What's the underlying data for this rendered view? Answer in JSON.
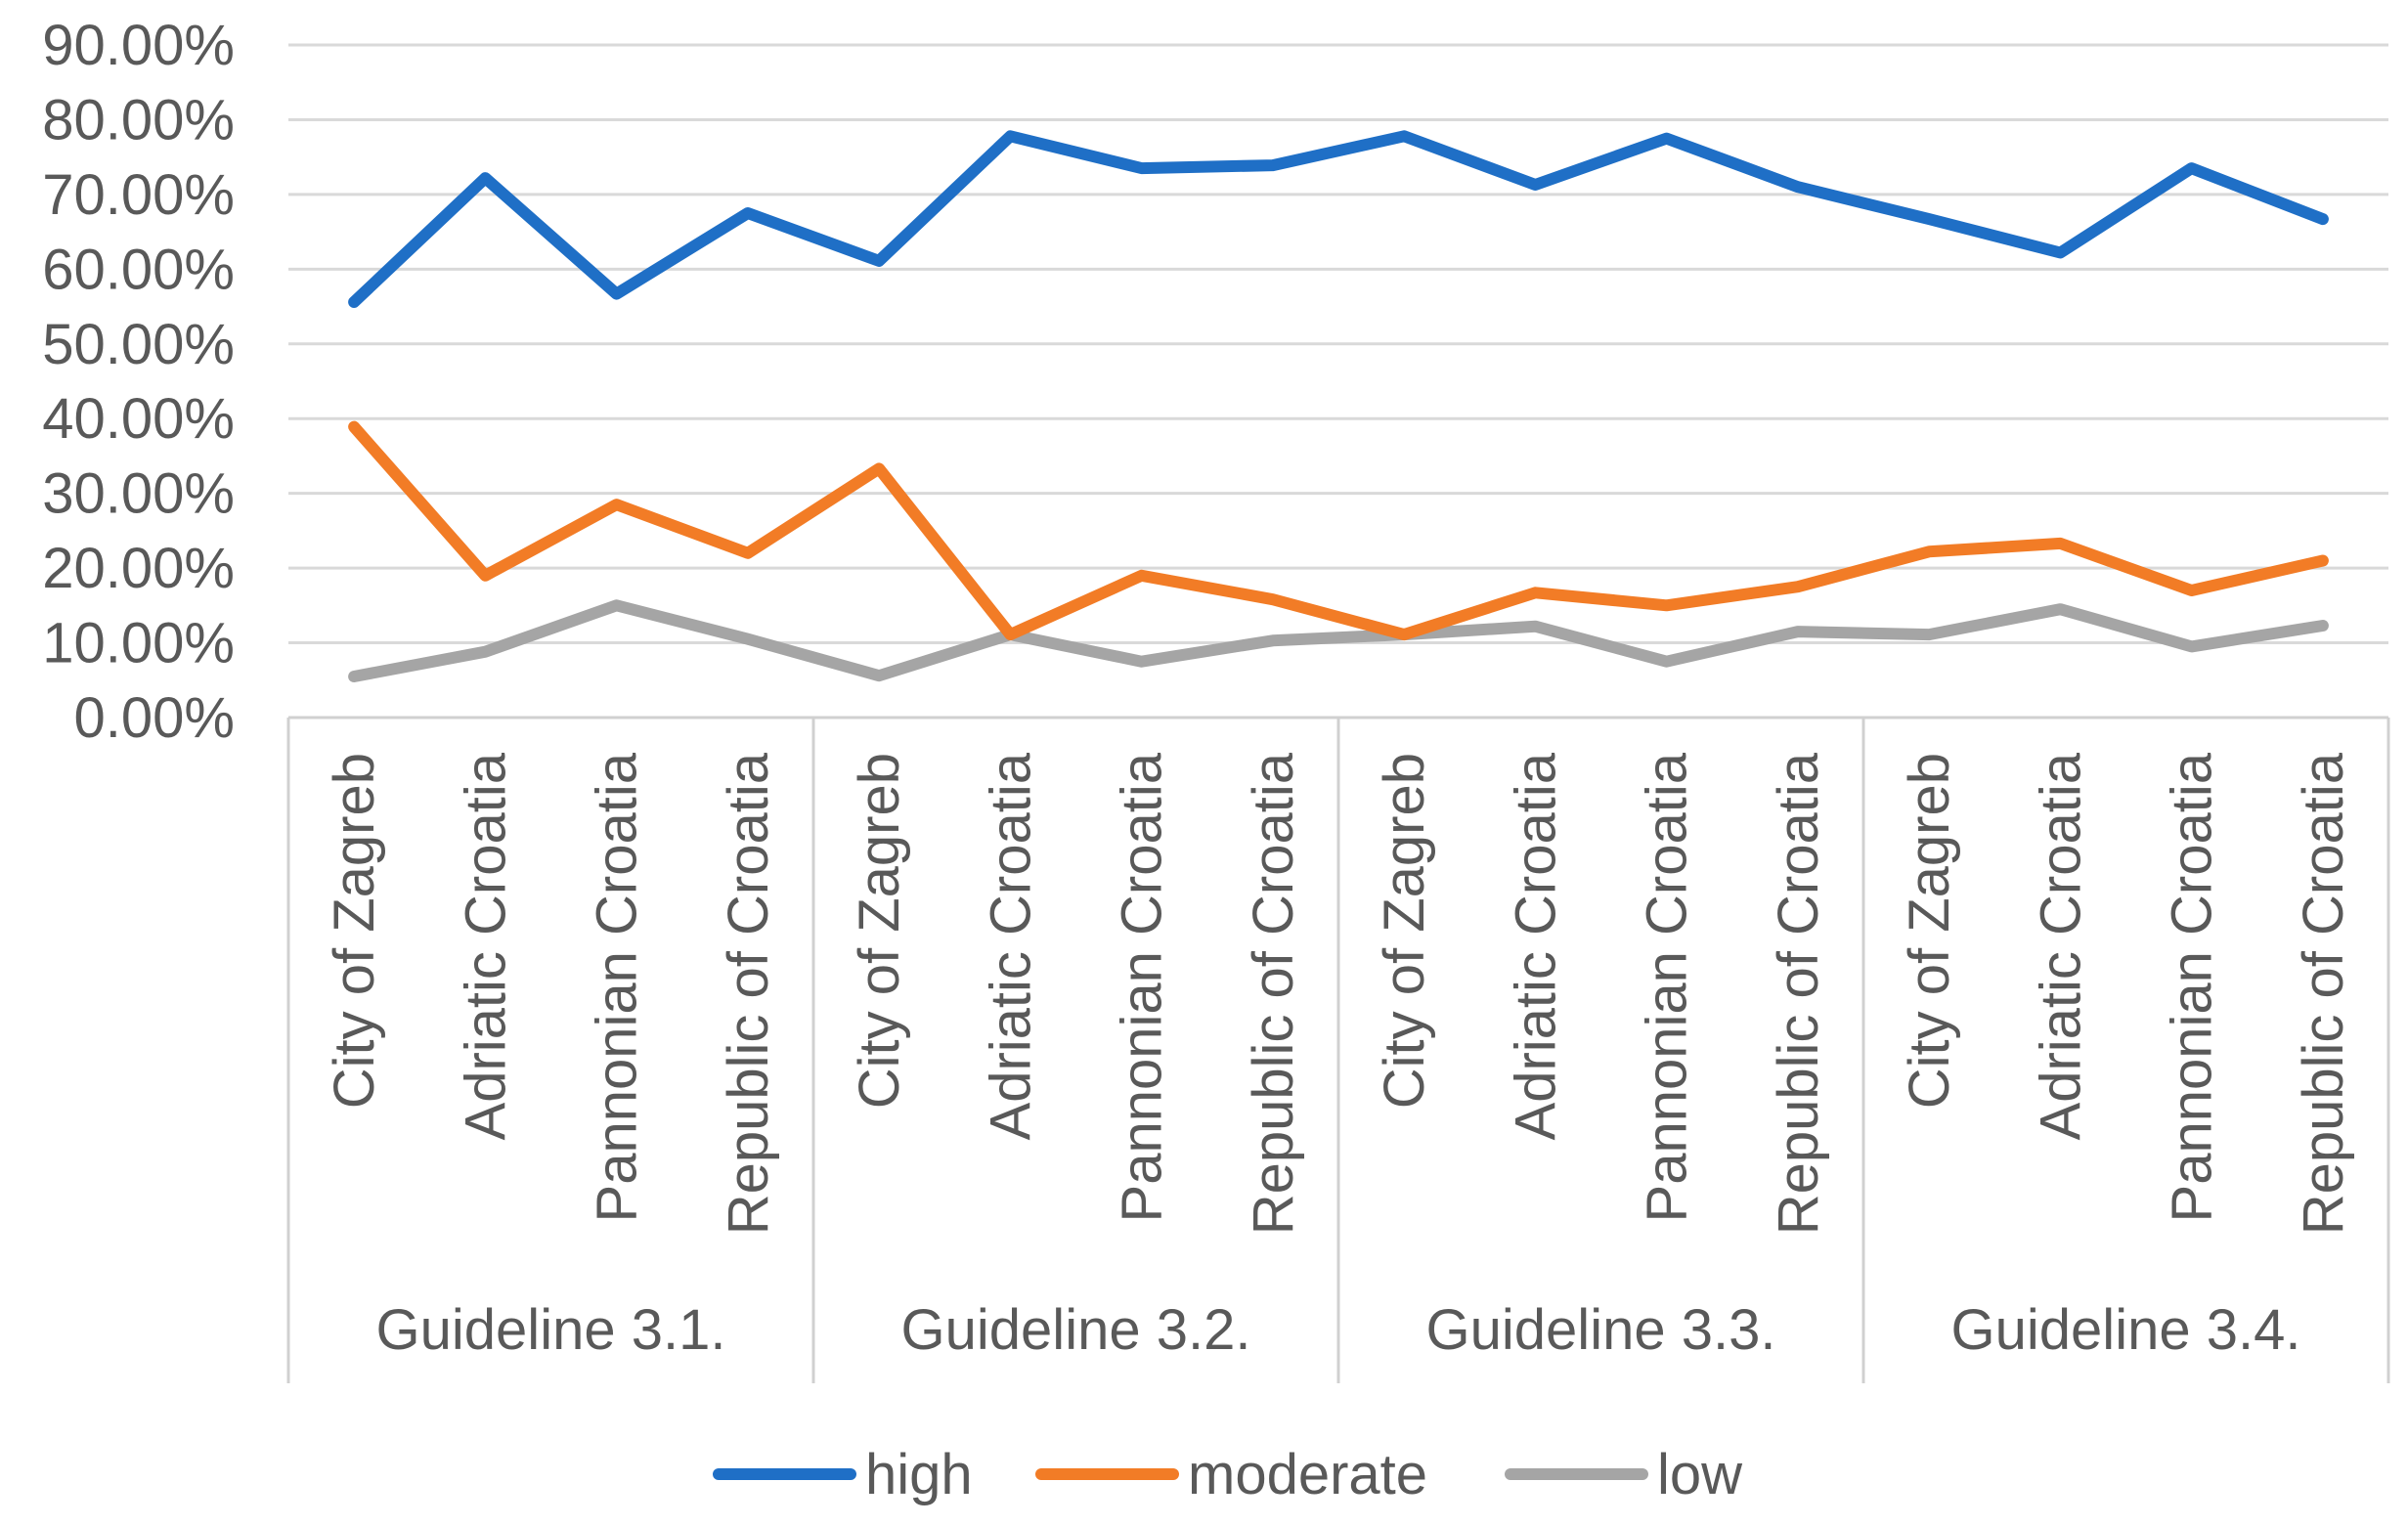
{
  "chart_data": {
    "type": "line",
    "title": "",
    "xlabel": "",
    "ylabel": "",
    "ylim": [
      0,
      90
    ],
    "y_ticks": [
      "0.00%",
      "10.00%",
      "20.00%",
      "30.00%",
      "40.00%",
      "50.00%",
      "60.00%",
      "70.00%",
      "80.00%",
      "90.00%"
    ],
    "grid": true,
    "legend_position": "bottom",
    "groups": [
      {
        "label": "Guideline 3.1.",
        "categories": [
          "City of Zagreb",
          "Adriatic Croatia",
          "Pannonian Croatia",
          "Republic of Croatia"
        ]
      },
      {
        "label": "Guideline 3.2.",
        "categories": [
          "City of Zagreb",
          "Adriatic Croatia",
          "Pannonian Croatia",
          "Republic of Croatia"
        ]
      },
      {
        "label": "Guideline 3.3.",
        "categories": [
          "City of Zagreb",
          "Adriatic Croatia",
          "Pannonian Croatia",
          "Republic of Croatia"
        ]
      },
      {
        "label": "Guideline 3.4.",
        "categories": [
          "City of Zagreb",
          "Adriatic Croatia",
          "Pannonian Croatia",
          "Republic of Croatia"
        ]
      }
    ],
    "series": [
      {
        "name": "high",
        "color": "#1f6fc6",
        "values": [
          55.6,
          72.2,
          56.7,
          67.5,
          61.1,
          77.8,
          73.5,
          73.9,
          77.8,
          71.3,
          77.5,
          71.0,
          66.7,
          62.2,
          73.5,
          66.7
        ]
      },
      {
        "name": "moderate",
        "color": "#f27c26",
        "values": [
          38.9,
          19.0,
          28.5,
          22.0,
          33.3,
          11.1,
          19.0,
          15.8,
          11.1,
          16.7,
          15.0,
          17.5,
          22.2,
          23.3,
          17.0,
          21.0
        ]
      },
      {
        "name": "low",
        "color": "#a5a5a5",
        "values": [
          5.5,
          8.8,
          15.0,
          10.5,
          5.6,
          11.1,
          7.5,
          10.3,
          11.1,
          12.2,
          7.5,
          11.5,
          11.1,
          14.5,
          9.5,
          12.3
        ]
      }
    ]
  }
}
